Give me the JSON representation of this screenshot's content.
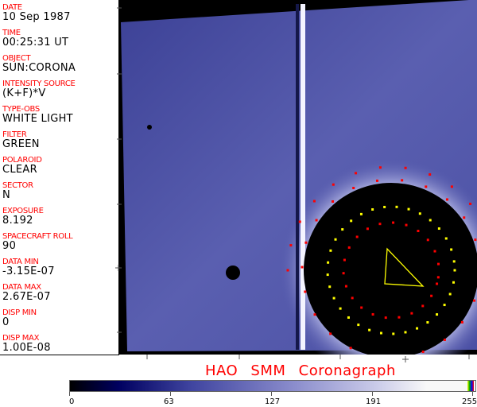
{
  "fields": [
    {
      "label": "DATE",
      "value": "10 Sep 1987"
    },
    {
      "label": "TIME",
      "value": "00:25:31 UT"
    },
    {
      "label": "OBJECT",
      "value": "SUN:CORONA"
    },
    {
      "label": "INTENSITY SOURCE",
      "value": "(K+F)*V"
    },
    {
      "label": "TYPE-OBS",
      "value": "WHITE LIGHT"
    },
    {
      "label": "FILTER",
      "value": "GREEN"
    },
    {
      "label": "POLAROID",
      "value": "CLEAR"
    },
    {
      "label": "SECTOR",
      "value": "N"
    },
    {
      "label": "EXPOSURE",
      "value": "8.192"
    },
    {
      "label": "SPACECRAFT ROLL",
      "value": "90"
    },
    {
      "label": "DATA MIN",
      "value": "-3.15E-07"
    },
    {
      "label": "DATA MAX",
      "value": "2.67E-07"
    },
    {
      "label": "DISP MIN",
      "value": "0"
    },
    {
      "label": "DISP MAX",
      "value": "1.00E-08"
    }
  ],
  "title": "HAO  SMM Coronagraph",
  "colorbar": {
    "ticks": [
      "0",
      "63",
      "127",
      "191",
      "255"
    ],
    "colors": {
      "low": "#000000",
      "mid": "#4045a0",
      "high": "#f8f8f8"
    }
  },
  "colors": {
    "label": "#ff0000",
    "marker_red": "#ff0000",
    "marker_yellow": "#ffff00"
  }
}
